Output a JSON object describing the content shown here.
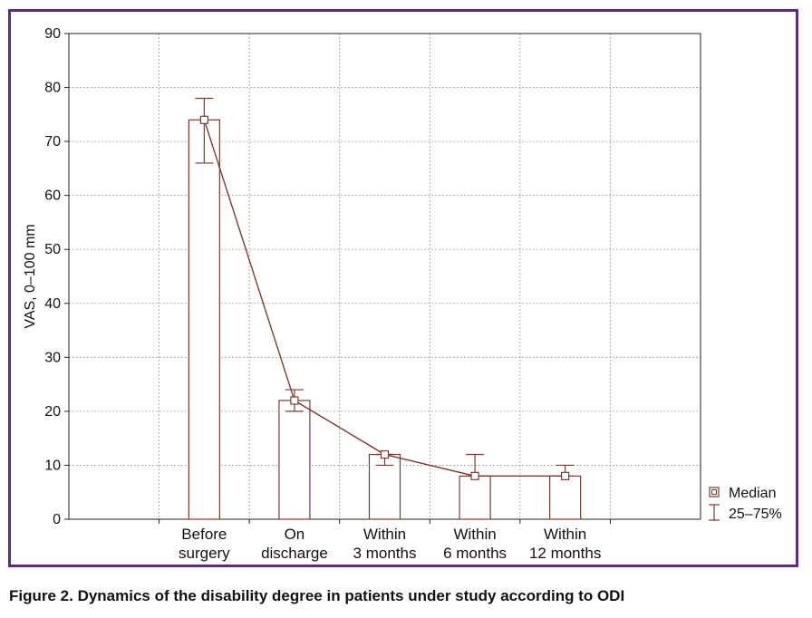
{
  "caption": "Figure 2. Dynamics of the disability degree in patients under study according to ODI",
  "colors": {
    "frame": "#5b2a86",
    "series": "#7a3b2e",
    "grid": "#9a9a9a"
  },
  "chart_data": {
    "type": "bar",
    "ylabel": "VAS, 0–100 mm",
    "xlabel": "",
    "ylim": [
      0,
      90
    ],
    "yticks": [
      0,
      10,
      20,
      30,
      40,
      50,
      60,
      70,
      80,
      90
    ],
    "grid": true,
    "legend_position": "right",
    "slots": 7,
    "categories": [
      {
        "lines": [
          "Before",
          "surgery"
        ],
        "slot": 2
      },
      {
        "lines": [
          "On",
          "discharge"
        ],
        "slot": 3
      },
      {
        "lines": [
          "Within",
          "3 months"
        ],
        "slot": 4
      },
      {
        "lines": [
          "Within",
          "6 months"
        ],
        "slot": 5
      },
      {
        "lines": [
          "Within",
          "12 months"
        ],
        "slot": 6
      }
    ],
    "series": [
      {
        "name": "Median",
        "values": [
          74,
          22,
          12,
          8,
          8
        ],
        "q25": [
          66,
          20,
          10,
          8,
          8
        ],
        "q75": [
          78,
          24,
          12,
          12,
          10
        ]
      }
    ],
    "legend": [
      "Median",
      "25–75%"
    ]
  }
}
